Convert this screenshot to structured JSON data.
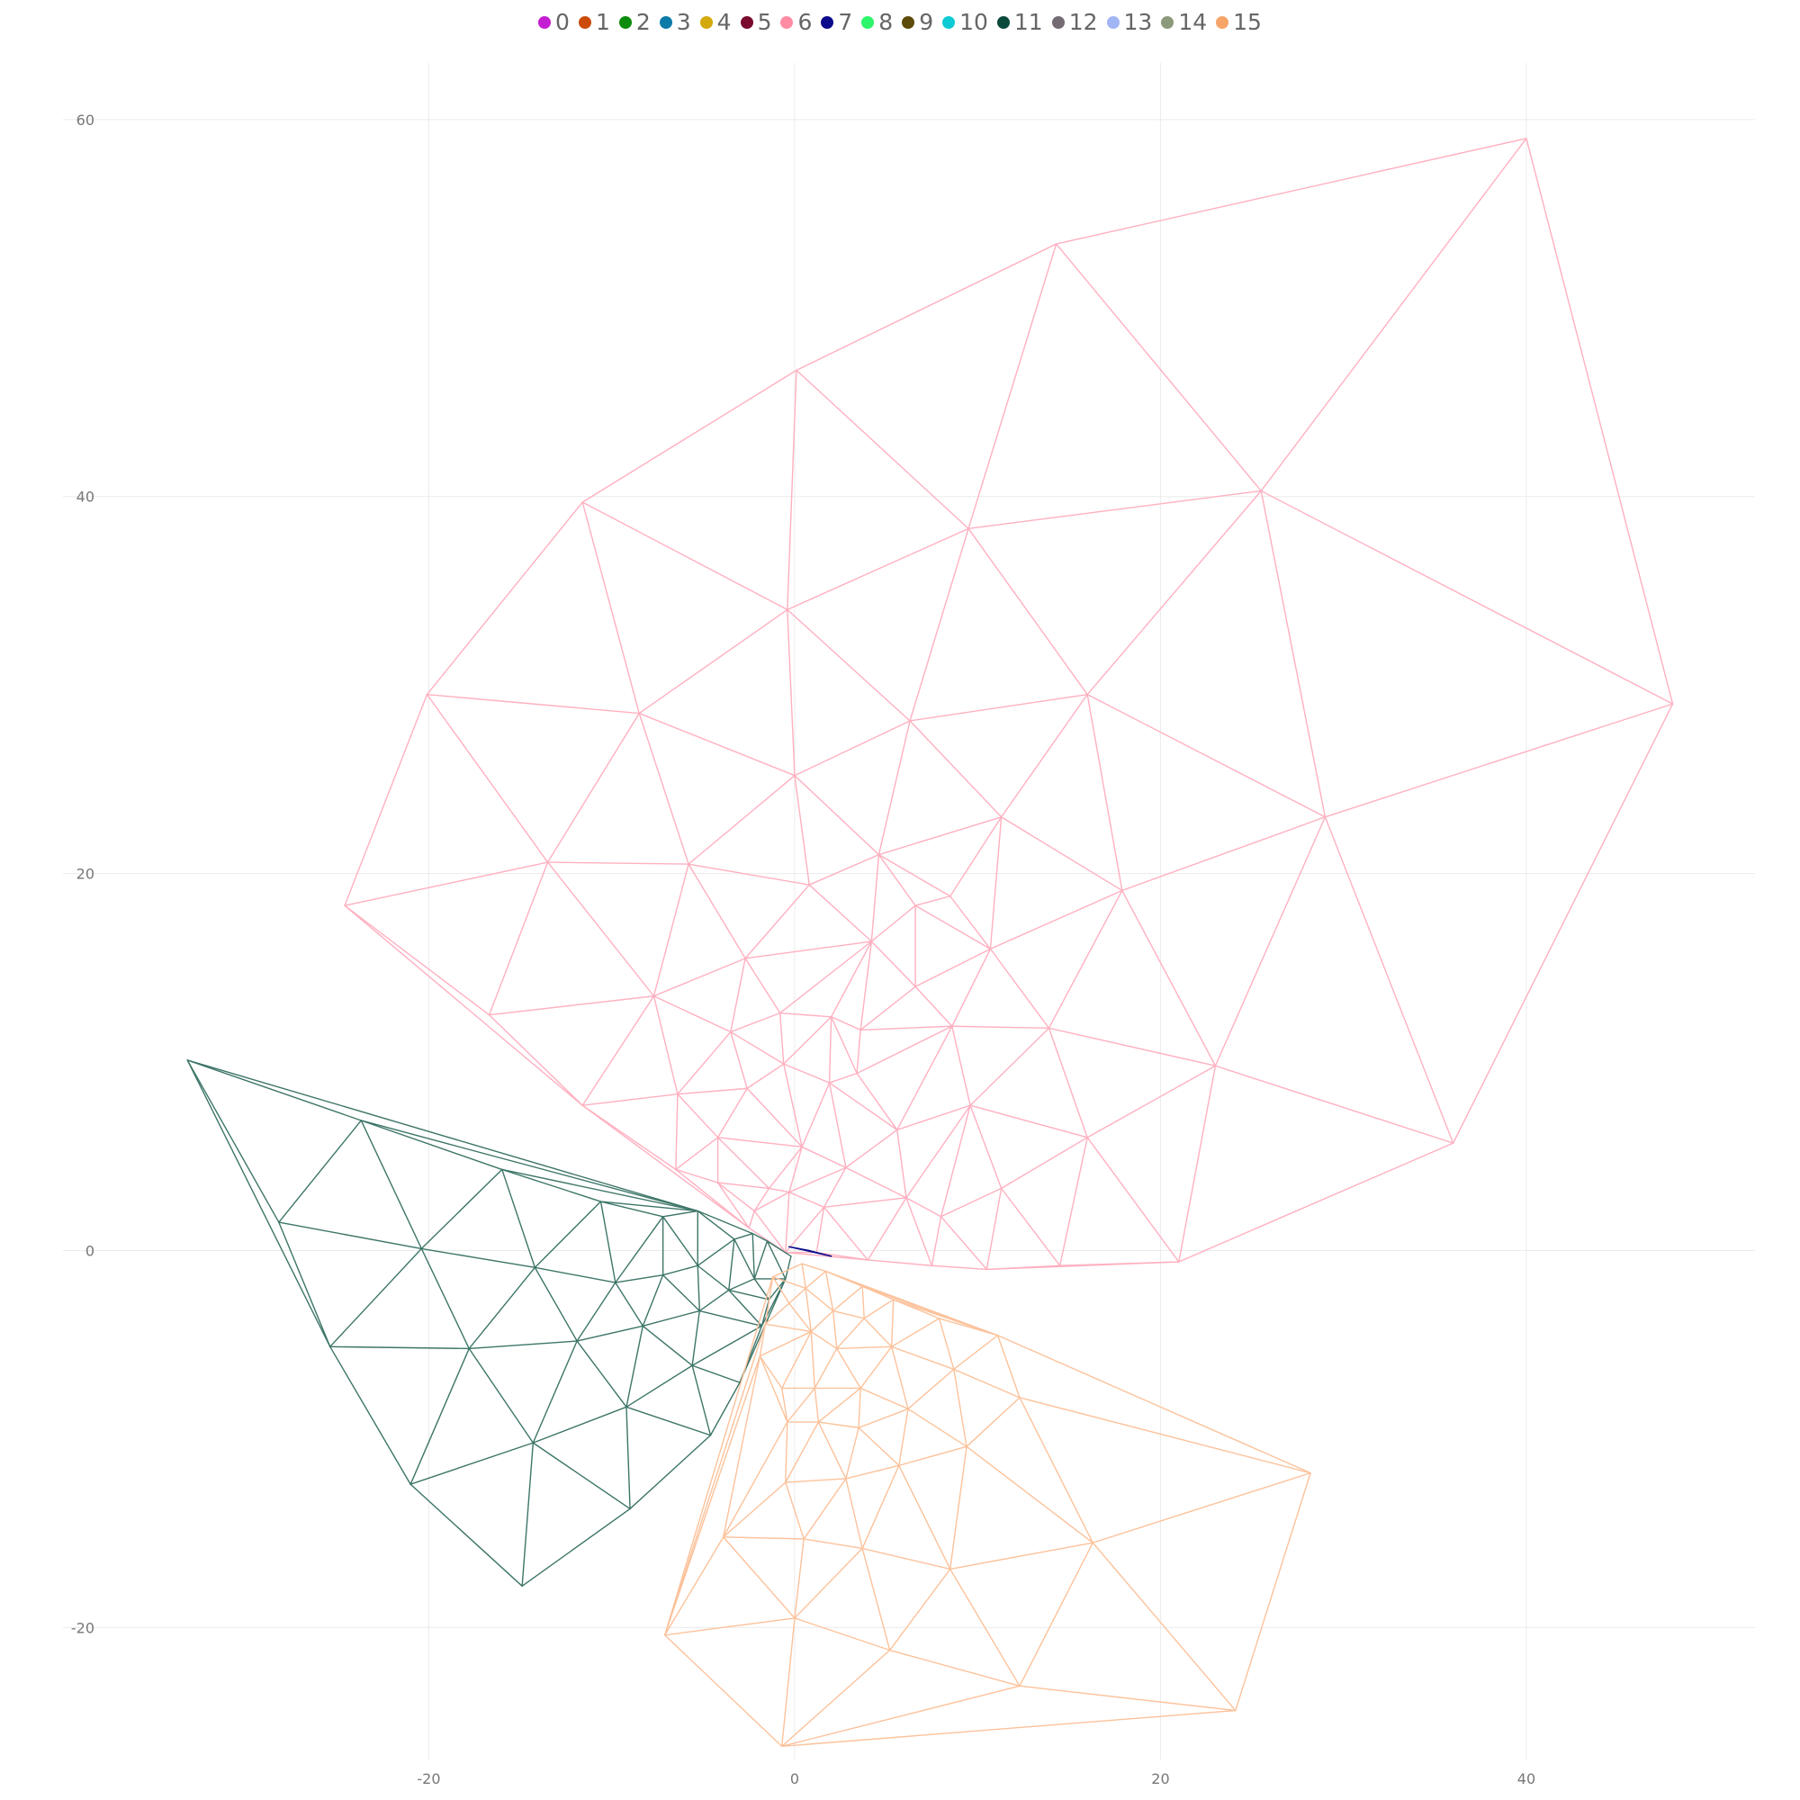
{
  "chart_data": {
    "type": "scatter",
    "title": "",
    "xlabel": "",
    "ylabel": "",
    "xlim": [
      -40,
      52.5
    ],
    "ylim": [
      -27,
      63
    ],
    "x_ticks": [
      -20,
      0,
      20,
      40
    ],
    "y_ticks": [
      -20,
      0,
      20,
      40,
      60
    ],
    "grid": true,
    "legend_position": "top-center",
    "legend": [
      {
        "label": "0",
        "color": "#c41ed3"
      },
      {
        "label": "1",
        "color": "#cc4a0a"
      },
      {
        "label": "2",
        "color": "#0c8b0c"
      },
      {
        "label": "3",
        "color": "#0c7ba8"
      },
      {
        "label": "4",
        "color": "#d3a90c"
      },
      {
        "label": "5",
        "color": "#7a0a2e"
      },
      {
        "label": "6",
        "color": "#ff8ca3"
      },
      {
        "label": "7",
        "color": "#0a0a8a"
      },
      {
        "label": "8",
        "color": "#2cf56c"
      },
      {
        "label": "9",
        "color": "#5e4a0a"
      },
      {
        "label": "10",
        "color": "#0ccbd5"
      },
      {
        "label": "11",
        "color": "#0a4a3c"
      },
      {
        "label": "12",
        "color": "#746b75"
      },
      {
        "label": "13",
        "color": "#a2b5f5"
      },
      {
        "label": "14",
        "color": "#8b9a7a"
      },
      {
        "label": "15",
        "color": "#f7a468"
      }
    ],
    "series": [
      {
        "name": "6",
        "color": "#ffb0c0",
        "points": [
          [
            40,
            59
          ],
          [
            48,
            29
          ],
          [
            36,
            5.7
          ],
          [
            21,
            -0.6
          ],
          [
            25.5,
            40.3
          ],
          [
            14.3,
            53.4
          ],
          [
            0.1,
            46.7
          ],
          [
            -11.6,
            39.7
          ],
          [
            -20.1,
            29.5
          ],
          [
            -24.6,
            18.3
          ],
          [
            -16.7,
            12.5
          ],
          [
            -11.6,
            7.7
          ],
          [
            -6.5,
            4.3
          ],
          [
            -4.2,
            3.6
          ],
          [
            -2.5,
            1.2
          ],
          [
            -0.5,
            -0.1
          ],
          [
            1.2,
            -0.1
          ],
          [
            4,
            -0.5
          ],
          [
            7.5,
            -0.8
          ],
          [
            10.5,
            -1
          ],
          [
            14.5,
            -0.8
          ],
          [
            29,
            23
          ],
          [
            17.9,
            19.1
          ],
          [
            16,
            29.5
          ],
          [
            9.5,
            38.3
          ],
          [
            -0.4,
            34
          ],
          [
            -8.5,
            28.5
          ],
          [
            -13.5,
            20.6
          ],
          [
            -5.8,
            20.5
          ],
          [
            0,
            25.2
          ],
          [
            6.3,
            28.1
          ],
          [
            11.3,
            23
          ],
          [
            8.5,
            18.8
          ],
          [
            4.6,
            21
          ],
          [
            0.8,
            19.4
          ],
          [
            -2.7,
            15.5
          ],
          [
            -7.7,
            13.5
          ],
          [
            -3.5,
            11.6
          ],
          [
            -0.8,
            12.6
          ],
          [
            2,
            12.4
          ],
          [
            3.6,
            11.7
          ],
          [
            4.2,
            16.4
          ],
          [
            6.6,
            18.3
          ],
          [
            10.7,
            16
          ],
          [
            13.9,
            11.8
          ],
          [
            8.6,
            11.9
          ],
          [
            6.6,
            14
          ],
          [
            23,
            9.8
          ],
          [
            16,
            6
          ],
          [
            11.3,
            3.3
          ],
          [
            9.6,
            7.7
          ],
          [
            5.6,
            6.4
          ],
          [
            3.4,
            9.4
          ],
          [
            1.9,
            8.9
          ],
          [
            -0.6,
            9.9
          ],
          [
            -2.6,
            8.6
          ],
          [
            -6.4,
            8.3
          ],
          [
            -4.2,
            6
          ],
          [
            -1.4,
            3.3
          ],
          [
            0.4,
            5.5
          ],
          [
            2.8,
            4.4
          ],
          [
            6.1,
            2.8
          ],
          [
            8,
            1.8
          ],
          [
            1.6,
            2.3
          ],
          [
            -0.3,
            3.1
          ],
          [
            -2.2,
            2.1
          ]
        ]
      },
      {
        "name": "11",
        "color": "#3d7568",
        "points": [
          [
            -33.2,
            10.1
          ],
          [
            -28.2,
            1.5
          ],
          [
            -25.4,
            -5.1
          ],
          [
            -21,
            -12.4
          ],
          [
            -14.9,
            -17.8
          ],
          [
            -9,
            -13.7
          ],
          [
            -4.6,
            -9.8
          ],
          [
            -3,
            -7
          ],
          [
            -1.8,
            -4
          ],
          [
            -1.4,
            -2.6
          ],
          [
            -0.5,
            -1.5
          ],
          [
            -0.2,
            -0.3
          ],
          [
            -5.3,
            2.1
          ],
          [
            -7.2,
            1.8
          ],
          [
            -10.6,
            2.6
          ],
          [
            -16,
            4.3
          ],
          [
            -23.7,
            6.9
          ],
          [
            -20.4,
            0.1
          ],
          [
            -14.2,
            -0.9
          ],
          [
            -9.8,
            -1.7
          ],
          [
            -7.2,
            -1.3
          ],
          [
            -5.3,
            -0.8
          ],
          [
            -11.9,
            -4.8
          ],
          [
            -17.8,
            -5.2
          ],
          [
            -14.3,
            -10.2
          ],
          [
            -9.2,
            -8.3
          ],
          [
            -5.6,
            -6.1
          ],
          [
            -8.3,
            -4
          ],
          [
            -5.2,
            -3.2
          ],
          [
            -3.6,
            -2.1
          ],
          [
            -2.2,
            -1.5
          ],
          [
            -3.3,
            0.6
          ],
          [
            -2.3,
            0.9
          ],
          [
            -1.5,
            0.5
          ]
        ]
      },
      {
        "name": "15",
        "color": "#fcc29b",
        "points": [
          [
            28.2,
            -11.8
          ],
          [
            24.1,
            -24.4
          ],
          [
            12.3,
            -23.1
          ],
          [
            5.2,
            -21.2
          ],
          [
            0,
            -19.5
          ],
          [
            -7.1,
            -20.4
          ],
          [
            -0.7,
            -26.3
          ],
          [
            -3.9,
            -15.2
          ],
          [
            0.5,
            -15.3
          ],
          [
            3.7,
            -15.8
          ],
          [
            8.5,
            -16.9
          ],
          [
            16.3,
            -15.5
          ],
          [
            12.3,
            -7.8
          ],
          [
            11.1,
            -4.5
          ],
          [
            7.9,
            -3.6
          ],
          [
            5.4,
            -2.6
          ],
          [
            3.7,
            -1.9
          ],
          [
            1.7,
            -1.1
          ],
          [
            0.4,
            -0.7
          ],
          [
            -1.2,
            -1.4
          ],
          [
            -1.6,
            -3.9
          ],
          [
            -1.9,
            -5.6
          ],
          [
            -0.7,
            -7.3
          ],
          [
            -0.4,
            -9.1
          ],
          [
            -0.5,
            -12.3
          ],
          [
            2.8,
            -12.1
          ],
          [
            5.7,
            -11.4
          ],
          [
            9.4,
            -10.4
          ],
          [
            6.2,
            -8.4
          ],
          [
            3.5,
            -9.4
          ],
          [
            1.3,
            -9.1
          ],
          [
            1.1,
            -7.3
          ],
          [
            3.6,
            -7.3
          ],
          [
            5.3,
            -5.1
          ],
          [
            8.7,
            -6.3
          ],
          [
            2.3,
            -5.2
          ],
          [
            0.9,
            -4.3
          ],
          [
            -0.3,
            -2.8
          ],
          [
            2.1,
            -3.2
          ],
          [
            3.8,
            -3.6
          ],
          [
            0.6,
            -2
          ]
        ]
      },
      {
        "name": "7",
        "color": "#0a0a8a",
        "points": [
          [
            -0.3,
            0.2
          ],
          [
            0.8,
            0
          ],
          [
            2,
            -0.3
          ]
        ]
      }
    ]
  }
}
